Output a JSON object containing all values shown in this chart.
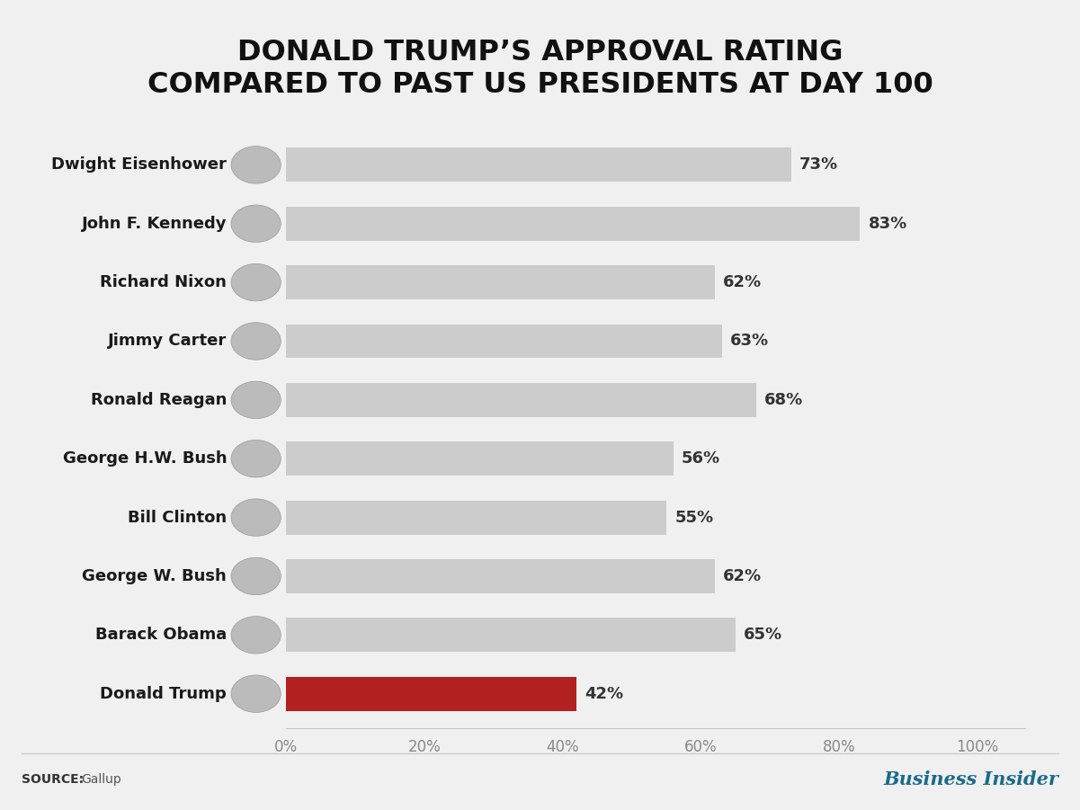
{
  "title_line1": "DONALD TRUMP’S APPROVAL RATING",
  "title_line2": "COMPARED TO PAST US PRESIDENTS AT DAY 100",
  "presidents": [
    "Dwight Eisenhower",
    "John F. Kennedy",
    "Richard Nixon",
    "Jimmy Carter",
    "Ronald Reagan",
    "George H.W. Bush",
    "Bill Clinton",
    "George W. Bush",
    "Barack Obama",
    "Donald Trump"
  ],
  "values": [
    73,
    83,
    62,
    63,
    68,
    56,
    55,
    62,
    65,
    42
  ],
  "bar_colors": [
    "#cccccc",
    "#cccccc",
    "#cccccc",
    "#cccccc",
    "#cccccc",
    "#cccccc",
    "#cccccc",
    "#cccccc",
    "#cccccc",
    "#b22020"
  ],
  "background_color": "#f0f0f0",
  "chart_bg_color": "#f0f0f0",
  "title_fontsize": 23,
  "label_fontsize": 13,
  "value_fontsize": 13,
  "source_text_bold": "SOURCE:",
  "source_text_normal": " Gallup",
  "branding_text": "Business Insider",
  "xticks": [
    0,
    20,
    40,
    60,
    80,
    100
  ],
  "xticklabels": [
    "0%",
    "20%",
    "40%",
    "60%",
    "80%",
    "100%"
  ]
}
